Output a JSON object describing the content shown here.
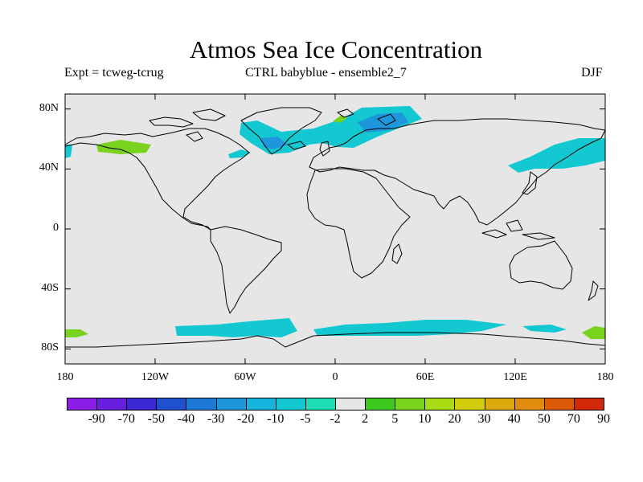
{
  "header": {
    "title": "Atmos Sea Ice Concentration",
    "left_label": "Expt = tcweg-tcrug",
    "center_label": "CTRL babyblue - ensemble2_7",
    "right_label": "DJF"
  },
  "map": {
    "background": "#e6e6e6",
    "y_ticks": [
      {
        "lat": 80,
        "label": "80N"
      },
      {
        "lat": 40,
        "label": "40N"
      },
      {
        "lat": 0,
        "label": "0"
      },
      {
        "lat": -40,
        "label": "40S"
      },
      {
        "lat": -80,
        "label": "80S"
      }
    ],
    "x_ticks": [
      {
        "lon": -180,
        "label": "180"
      },
      {
        "lon": -120,
        "label": "120W"
      },
      {
        "lon": -60,
        "label": "60W"
      },
      {
        "lon": 0,
        "label": "0"
      },
      {
        "lon": 60,
        "label": "60E"
      },
      {
        "lon": 120,
        "label": "120E"
      },
      {
        "lon": 180,
        "label": "180"
      }
    ]
  },
  "colorbar": {
    "labels": [
      "-90",
      "-70",
      "-50",
      "-40",
      "-30",
      "-20",
      "-10",
      "-5",
      "-2",
      "2",
      "5",
      "10",
      "20",
      "30",
      "40",
      "50",
      "70",
      "90"
    ],
    "colors": [
      "#8a1ee6",
      "#6a1ee0",
      "#3c28d2",
      "#1e50cf",
      "#1e78d6",
      "#1e96dc",
      "#14b4dc",
      "#14c8d2",
      "#1edcb4",
      "#e6e6e6",
      "#3cc81e",
      "#78d21e",
      "#aadc14",
      "#d2cd0a",
      "#dcaa0a",
      "#e18c0a",
      "#dc5a0a",
      "#d2280a"
    ]
  }
}
